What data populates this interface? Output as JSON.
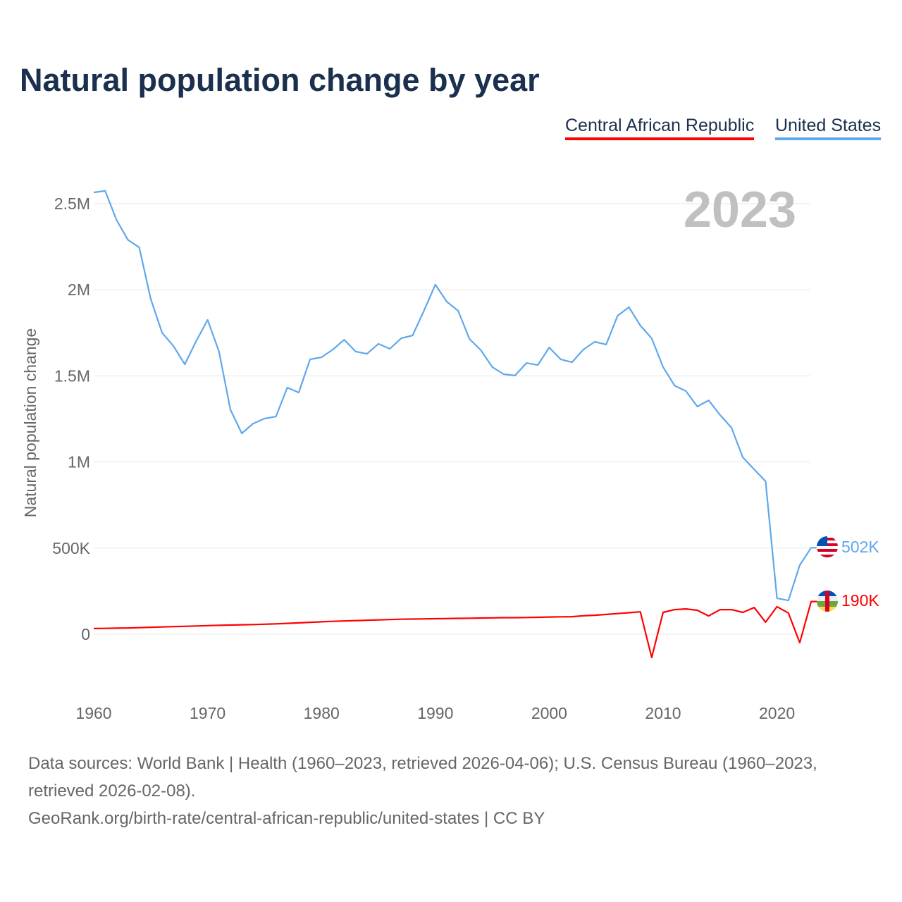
{
  "title": "Natural population change by year",
  "legend": [
    {
      "label": "Central African Republic",
      "color": "#ff0000"
    },
    {
      "label": "United States",
      "color": "#5ea8ec"
    }
  ],
  "year_label": "2023",
  "end_labels": {
    "us": "502K",
    "car": "190K"
  },
  "footer": {
    "sources": "Data sources: World Bank | Health (1960–2023, retrieved 2026-04-06); U.S. Census Bureau (1960–2023, retrieved 2026-02-08).",
    "link": "GeoRank.org/birth-rate/central-african-republic/united-states | CC BY"
  },
  "chart_data": {
    "type": "line",
    "title": "Natural population change by year",
    "xlabel": "",
    "ylabel": "Natural population change",
    "xlim": [
      1960,
      2023
    ],
    "ylim": [
      -350000,
      2700000
    ],
    "x_ticks": [
      1960,
      1970,
      1980,
      1990,
      2000,
      2010,
      2020
    ],
    "y_ticks": [
      {
        "value": 0,
        "label": "0"
      },
      {
        "value": 500000,
        "label": "500K"
      },
      {
        "value": 1000000,
        "label": "1M"
      },
      {
        "value": 1500000,
        "label": "1.5M"
      },
      {
        "value": 2000000,
        "label": "2M"
      },
      {
        "value": 2500000,
        "label": "2.5M"
      }
    ],
    "grid": true,
    "legend_position": "top-right",
    "x_start": 1960,
    "series": [
      {
        "name": "United States",
        "color": "#5ea8ec",
        "values": [
          2565000,
          2574000,
          2406000,
          2290000,
          2246000,
          1948000,
          1751000,
          1673000,
          1567000,
          1702000,
          1825000,
          1641000,
          1305000,
          1166000,
          1223000,
          1252000,
          1264000,
          1432000,
          1403000,
          1596000,
          1608000,
          1653000,
          1710000,
          1641000,
          1628000,
          1686000,
          1657000,
          1718000,
          1735000,
          1878000,
          2030000,
          1931000,
          1878000,
          1714000,
          1649000,
          1551000,
          1510000,
          1502000,
          1575000,
          1563000,
          1665000,
          1596000,
          1579000,
          1653000,
          1698000,
          1682000,
          1849000,
          1899000,
          1792000,
          1718000,
          1551000,
          1444000,
          1412000,
          1322000,
          1358000,
          1273000,
          1199000,
          1027000,
          957000,
          888000,
          209000,
          196000,
          401000,
          502000
        ]
      },
      {
        "name": "Central African Republic",
        "color": "#ff0000",
        "values": [
          33000,
          34000,
          35000,
          36000,
          38000,
          40000,
          42000,
          44000,
          46000,
          48000,
          50000,
          52000,
          53000,
          55000,
          56000,
          58000,
          60000,
          63000,
          66000,
          69000,
          72000,
          75000,
          77000,
          79000,
          81000,
          83000,
          85000,
          87000,
          88000,
          89000,
          90000,
          91000,
          92000,
          93000,
          94000,
          95000,
          96000,
          96000,
          97000,
          98000,
          100000,
          101000,
          102000,
          107000,
          110000,
          115000,
          120000,
          125000,
          130000,
          -135000,
          127000,
          143000,
          147000,
          139000,
          106000,
          143000,
          143000,
          127000,
          155000,
          70000,
          160000,
          123000,
          -49000,
          190000
        ]
      }
    ]
  }
}
